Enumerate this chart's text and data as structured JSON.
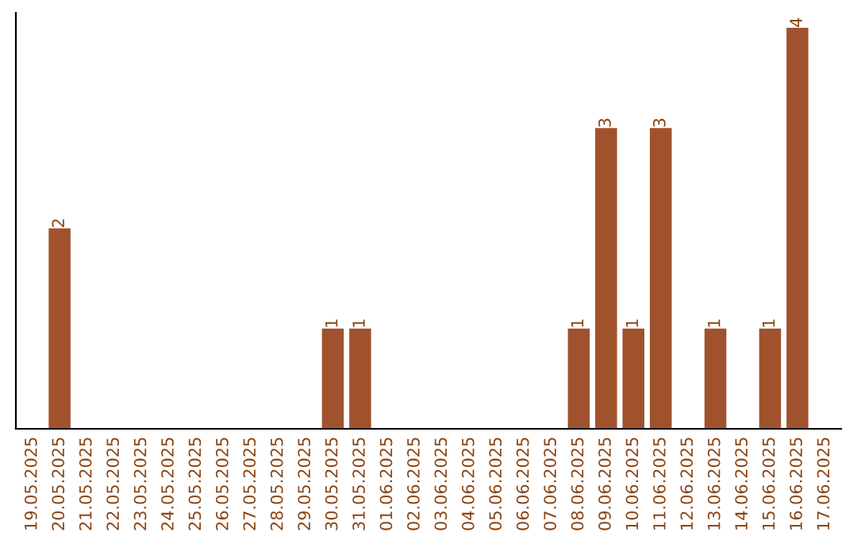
{
  "chart_data": {
    "type": "bar",
    "categories": [
      "19.05.2025",
      "20.05.2025",
      "21.05.2025",
      "22.05.2025",
      "23.05.2025",
      "24.05.2025",
      "25.05.2025",
      "26.05.2025",
      "27.05.2025",
      "28.05.2025",
      "29.05.2025",
      "30.05.2025",
      "31.05.2025",
      "01.06.2025",
      "02.06.2025",
      "03.06.2025",
      "04.06.2025",
      "05.06.2025",
      "06.06.2025",
      "07.06.2025",
      "08.06.2025",
      "09.06.2025",
      "10.06.2025",
      "11.06.2025",
      "12.06.2025",
      "13.06.2025",
      "14.06.2025",
      "15.06.2025",
      "16.06.2025",
      "17.06.2025"
    ],
    "values": [
      0,
      2,
      0,
      0,
      0,
      0,
      0,
      0,
      0,
      0,
      0,
      1,
      1,
      0,
      0,
      0,
      0,
      0,
      0,
      0,
      1,
      3,
      1,
      3,
      0,
      1,
      0,
      1,
      4,
      0
    ],
    "color": "#a0522d",
    "ylim": [
      0,
      4.15
    ],
    "value_labels": [
      null,
      "2",
      null,
      null,
      null,
      null,
      null,
      null,
      null,
      null,
      null,
      "1",
      "1",
      null,
      null,
      null,
      null,
      null,
      null,
      null,
      "1",
      "3",
      "1",
      "3",
      null,
      "1",
      null,
      "1",
      "4",
      null
    ],
    "tick_labels": "x",
    "grid": false,
    "legend": false
  }
}
